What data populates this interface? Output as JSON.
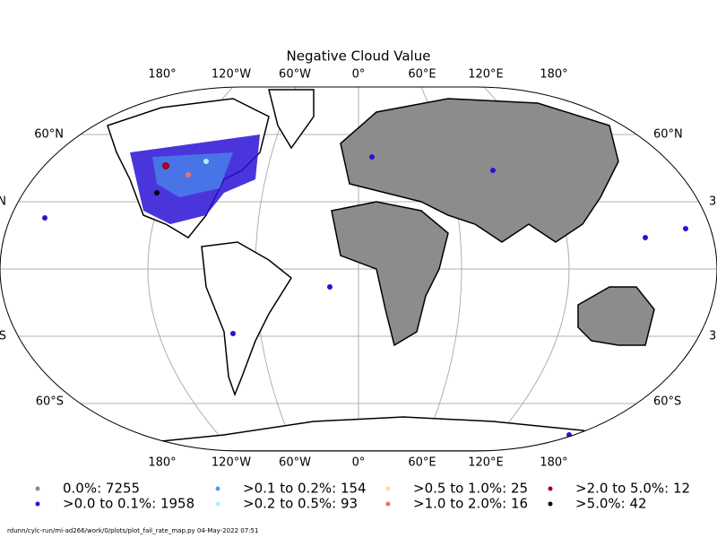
{
  "title": "Negative Cloud Value",
  "top_labels": [
    "180°",
    "120°W",
    "60°W",
    "0°",
    "60°E",
    "120°E",
    "180°"
  ],
  "bottom_labels": [
    "180°",
    "120°W",
    "60°W",
    "0°",
    "60°E",
    "120°E",
    "180°"
  ],
  "left_labels": [
    "60°N",
    "N",
    "S",
    "60°S"
  ],
  "right_labels": [
    "60°N",
    "3",
    "3",
    "60°S"
  ],
  "legend": [
    {
      "label": "0.0%: 7255",
      "color": "#8c8c8c"
    },
    {
      "label": ">0.0 to 0.1%: 1958",
      "color": "#2a12d6"
    },
    {
      "label": ">0.1 to 0.2%: 154",
      "color": "#4a9ff0"
    },
    {
      "label": ">0.2 to 0.5%: 93",
      "color": "#aaf0ff"
    },
    {
      "label": ">0.5 to 1.0%: 25",
      "color": "#ffd9a0"
    },
    {
      "label": ">1.0 to 2.0%: 16",
      "color": "#f07070"
    },
    {
      "label": ">2.0 to 5.0%: 12",
      "color": "#a0001a"
    },
    {
      "label": ">5.0%: 42",
      "color": "#000000"
    }
  ],
  "footer": "rdunn/cylc-run/mi-ad266/work/0/plots/plot_fail_rate_map.py   04-May-2022 07:51"
}
